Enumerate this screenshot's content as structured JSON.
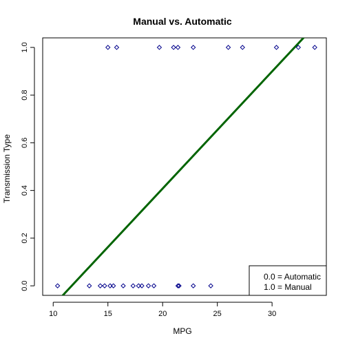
{
  "chart_data": {
    "type": "scatter",
    "title": "Manual vs. Automatic",
    "xlabel": "MPG",
    "ylabel": "Transmission Type",
    "xlim": [
      10,
      34
    ],
    "ylim": [
      0,
      1
    ],
    "xticks": [
      10,
      15,
      20,
      25,
      30
    ],
    "yticks": [
      0.0,
      0.2,
      0.4,
      0.6,
      0.8,
      1.0
    ],
    "xtick_labels": [
      "10",
      "15",
      "20",
      "25",
      "30"
    ],
    "ytick_labels": [
      "0.0",
      "0.2",
      "0.4",
      "0.6",
      "0.8",
      "1.0"
    ],
    "grid": false,
    "point_color": "#00008b",
    "line_color": "#006400",
    "points": [
      {
        "x": 10.4,
        "y": 0
      },
      {
        "x": 13.3,
        "y": 0
      },
      {
        "x": 14.3,
        "y": 0
      },
      {
        "x": 14.7,
        "y": 0
      },
      {
        "x": 15.2,
        "y": 0
      },
      {
        "x": 15.5,
        "y": 0
      },
      {
        "x": 16.4,
        "y": 0
      },
      {
        "x": 17.3,
        "y": 0
      },
      {
        "x": 17.8,
        "y": 0
      },
      {
        "x": 18.1,
        "y": 0
      },
      {
        "x": 18.7,
        "y": 0
      },
      {
        "x": 19.2,
        "y": 0
      },
      {
        "x": 21.4,
        "y": 0
      },
      {
        "x": 21.5,
        "y": 0
      },
      {
        "x": 22.8,
        "y": 0
      },
      {
        "x": 24.4,
        "y": 0
      },
      {
        "x": 15.0,
        "y": 1
      },
      {
        "x": 15.8,
        "y": 1
      },
      {
        "x": 19.7,
        "y": 1
      },
      {
        "x": 21.0,
        "y": 1
      },
      {
        "x": 21.4,
        "y": 1
      },
      {
        "x": 22.8,
        "y": 1
      },
      {
        "x": 26.0,
        "y": 1
      },
      {
        "x": 27.3,
        "y": 1
      },
      {
        "x": 30.4,
        "y": 1
      },
      {
        "x": 32.4,
        "y": 1
      },
      {
        "x": 33.9,
        "y": 1
      }
    ],
    "fit_line": {
      "slope": 0.0491,
      "intercept": -0.574
    },
    "legend": {
      "position": "bottom-right",
      "entries": [
        "0.0 = Automatic",
        "1.0 = Manual"
      ]
    }
  }
}
